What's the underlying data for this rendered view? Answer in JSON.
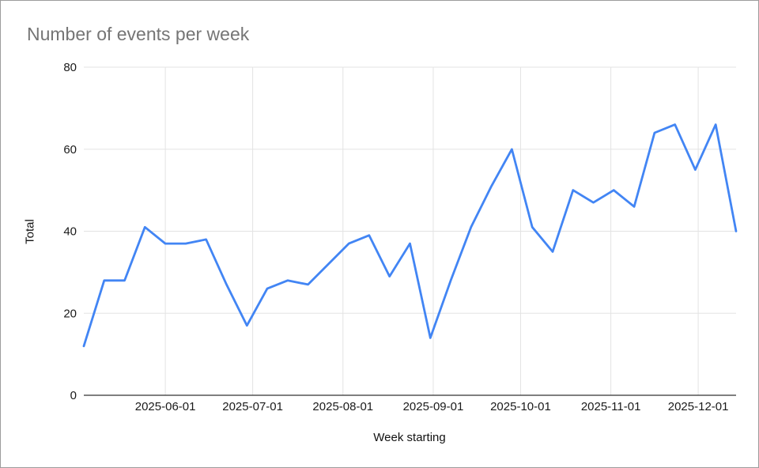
{
  "window": {
    "background": "#ffffff",
    "border_color": "#9c9c9c"
  },
  "chart_data": {
    "type": "line",
    "title": "Number of events per week",
    "xlabel": "Week starting",
    "ylabel": "Total",
    "grid": true,
    "legend": "none",
    "ylim": [
      0,
      80
    ],
    "y_ticks": [
      0,
      20,
      40,
      60,
      80
    ],
    "x_ticks": [
      "2025-06-01",
      "2025-07-01",
      "2025-08-01",
      "2025-09-01",
      "2025-10-01",
      "2025-11-01",
      "2025-12-01"
    ],
    "x": [
      "2025-05-04",
      "2025-05-11",
      "2025-05-18",
      "2025-05-25",
      "2025-06-01",
      "2025-06-08",
      "2025-06-15",
      "2025-06-22",
      "2025-06-29",
      "2025-07-06",
      "2025-07-13",
      "2025-07-20",
      "2025-07-27",
      "2025-08-03",
      "2025-08-10",
      "2025-08-17",
      "2025-08-24",
      "2025-08-31",
      "2025-09-07",
      "2025-09-14",
      "2025-09-21",
      "2025-09-28",
      "2025-10-05",
      "2025-10-12",
      "2025-10-19",
      "2025-10-26",
      "2025-11-02",
      "2025-11-09",
      "2025-11-16",
      "2025-11-23",
      "2025-11-30",
      "2025-12-07",
      "2025-12-14"
    ],
    "series": [
      {
        "name": "Total",
        "values": [
          12,
          28,
          28,
          41,
          37,
          37,
          38,
          27,
          17,
          26,
          28,
          27,
          32,
          37,
          39,
          29,
          37,
          14,
          28,
          41,
          51,
          60,
          41,
          35,
          50,
          47,
          50,
          46,
          64,
          66,
          55,
          66,
          40
        ]
      }
    ],
    "colors": {
      "line": "#4285f4",
      "grid": "#e3e3e3",
      "axis": "#333333",
      "title": "#757575",
      "tick_text": "#1a1a1a"
    }
  }
}
